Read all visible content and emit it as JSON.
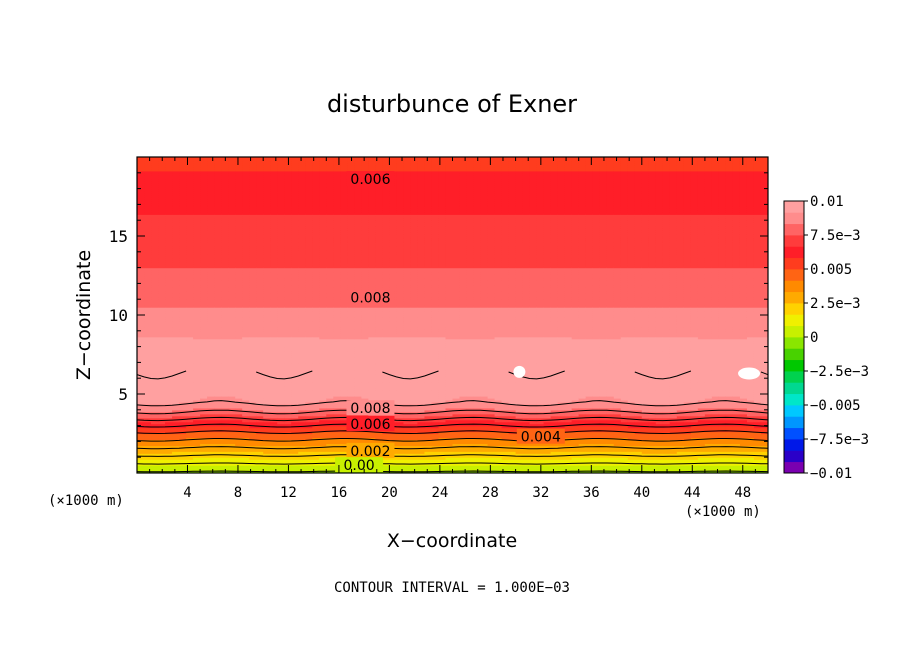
{
  "chart_data": {
    "type": "heatmap",
    "title": "disturbunce of Exner",
    "xlabel": "X−coordinate",
    "ylabel": "Z−coordinate",
    "x_unit_left": "(×1000 m)",
    "x_unit_right": "(×1000 m)",
    "footer": "CONTOUR INTERVAL = 1.000E−03",
    "xlim": [
      0,
      50
    ],
    "ylim": [
      0,
      20
    ],
    "x_ticks": [
      4,
      8,
      12,
      16,
      20,
      24,
      28,
      32,
      36,
      40,
      44,
      48
    ],
    "x_tick_labels": [
      "4",
      "8",
      "12",
      "16",
      "20",
      "24",
      "28",
      "32",
      "36",
      "40",
      "44",
      "48"
    ],
    "y_ticks": [
      5,
      10,
      15
    ],
    "y_tick_labels": [
      "5",
      "10",
      "15"
    ],
    "contour_interval": 0.001,
    "colorbar": {
      "min": -0.01,
      "max": 0.01,
      "labels": [
        {
          "value": 0.01,
          "text": "0.01"
        },
        {
          "value": 0.0075,
          "text": "7.5e−3"
        },
        {
          "value": 0.005,
          "text": "0.005"
        },
        {
          "value": 0.0025,
          "text": "2.5e−3"
        },
        {
          "value": 0,
          "text": "0"
        },
        {
          "value": -0.0025,
          "text": "−2.5e−3"
        },
        {
          "value": -0.005,
          "text": "−0.005"
        },
        {
          "value": -0.0075,
          "text": "−7.5e−3"
        },
        {
          "value": -0.01,
          "text": "−0.01"
        }
      ],
      "colors": [
        "#7a00b0",
        "#2a00c8",
        "#0018e8",
        "#0050ff",
        "#0096ff",
        "#00c8ff",
        "#00e6c8",
        "#00d890",
        "#00d24e",
        "#00c800",
        "#48d200",
        "#8ae600",
        "#c8f000",
        "#f0f000",
        "#ffd200",
        "#ffaa00",
        "#ff8a00",
        "#ff6414",
        "#ff3c1e",
        "#ff1e28",
        "#ff3c3c",
        "#ff6464",
        "#ff8c8c",
        "#ffa0a0"
      ]
    },
    "profile": [
      {
        "z": 0.0,
        "v": -0.0002
      },
      {
        "z": 0.5,
        "v": 0.0008
      },
      {
        "z": 1.0,
        "v": 0.0018
      },
      {
        "z": 1.5,
        "v": 0.0028
      },
      {
        "z": 2.0,
        "v": 0.0038
      },
      {
        "z": 2.5,
        "v": 0.0048
      },
      {
        "z": 3.0,
        "v": 0.006
      },
      {
        "z": 3.5,
        "v": 0.0072
      },
      {
        "z": 4.0,
        "v": 0.0083
      },
      {
        "z": 4.5,
        "v": 0.0092
      },
      {
        "z": 5.5,
        "v": 0.0097
      },
      {
        "z": 6.5,
        "v": 0.01
      },
      {
        "z": 7.5,
        "v": 0.0097
      },
      {
        "z": 8.5,
        "v": 0.0092
      },
      {
        "z": 10.0,
        "v": 0.0086
      },
      {
        "z": 11.0,
        "v": 0.008
      },
      {
        "z": 12.5,
        "v": 0.0076
      },
      {
        "z": 14.0,
        "v": 0.0073
      },
      {
        "z": 15.0,
        "v": 0.007
      },
      {
        "z": 17.0,
        "v": 0.0065
      },
      {
        "z": 18.5,
        "v": 0.006
      },
      {
        "z": 20.0,
        "v": 0.0056
      }
    ],
    "contour_labels": [
      {
        "text": "0.006",
        "x": 18.5,
        "z": 18.6
      },
      {
        "text": "0.008",
        "x": 18.5,
        "z": 11.1
      },
      {
        "text": "0.008",
        "x": 18.5,
        "z": 4.1
      },
      {
        "text": "0.006",
        "x": 18.5,
        "z": 3.1
      },
      {
        "text": "0.004",
        "x": 32.0,
        "z": 2.3
      },
      {
        "text": "0.002",
        "x": 18.5,
        "z": 1.4
      },
      {
        "text": "0.00",
        "x": 17.6,
        "z": 0.5
      }
    ],
    "white_spots": [
      {
        "x": 30.3,
        "z": 6.4
      },
      {
        "x": 48.5,
        "z": 6.3
      }
    ]
  }
}
